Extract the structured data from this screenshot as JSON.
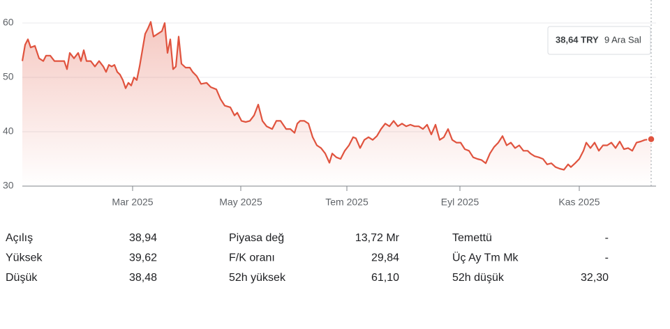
{
  "chart_data": {
    "type": "line",
    "x": [
      0,
      4,
      8,
      12,
      18,
      24,
      30,
      34,
      40,
      46,
      52,
      60,
      64,
      68,
      74,
      80,
      84,
      88,
      92,
      98,
      104,
      110,
      116,
      120,
      124,
      128,
      132,
      136,
      140,
      144,
      148,
      152,
      156,
      160,
      164,
      168,
      172,
      176,
      180,
      184,
      188,
      194,
      200,
      204,
      208,
      212,
      216,
      220,
      224,
      228,
      234,
      240,
      244,
      250,
      256,
      264,
      270,
      278,
      284,
      290,
      298,
      304,
      308,
      314,
      320,
      326,
      332,
      338,
      344,
      350,
      358,
      364,
      370,
      378,
      384,
      390,
      394,
      398,
      404,
      410,
      416,
      422,
      428,
      434,
      440,
      444,
      450,
      456,
      462,
      468,
      474,
      478,
      484,
      490,
      496,
      502,
      508,
      514,
      520,
      526,
      532,
      538,
      544,
      550,
      556,
      562,
      568,
      574,
      580,
      586,
      592,
      598,
      604,
      610,
      616,
      622,
      628,
      634,
      640,
      646,
      652,
      658,
      664,
      670,
      676,
      682,
      688,
      694,
      700,
      706,
      712,
      718,
      724,
      728,
      734,
      740,
      746,
      752,
      758,
      764,
      770,
      776,
      782,
      786,
      792,
      798,
      804,
      808,
      814,
      820,
      826,
      832,
      838,
      844,
      850,
      856,
      862,
      868,
      874,
      880,
      886,
      892,
      901
    ],
    "series": [
      {
        "color": "#e0533e",
        "values": [
          53,
          56,
          57,
          55.5,
          55.8,
          53.5,
          53,
          54,
          54,
          53,
          53,
          53,
          51.5,
          54.5,
          53.5,
          54.5,
          53,
          55,
          53,
          53,
          52,
          53,
          52,
          51,
          52.3,
          52,
          52.3,
          51,
          50.5,
          49.5,
          48,
          49,
          48.5,
          50,
          49.5,
          52,
          55,
          58,
          59,
          60.2,
          57.5,
          58,
          58.5,
          60,
          54.5,
          57,
          51.5,
          52,
          57.5,
          52.5,
          51.8,
          51.8,
          51,
          50.2,
          48.8,
          49,
          48.2,
          47.8,
          46,
          44.8,
          44.5,
          43,
          43.5,
          42,
          41.8,
          42,
          43,
          45,
          42,
          41,
          40.5,
          42,
          42,
          40.5,
          40.5,
          39.8,
          41.5,
          42,
          42,
          41.5,
          39,
          37.5,
          37,
          36,
          34.3,
          36,
          35.3,
          35,
          36.5,
          37.5,
          39,
          38.8,
          37,
          38.5,
          39,
          38.5,
          39.2,
          40.5,
          41.5,
          41,
          42,
          41,
          41.5,
          41,
          41.3,
          41,
          41,
          40.5,
          41.3,
          39.5,
          41.3,
          38.5,
          39,
          40.5,
          38.5,
          38,
          38,
          36.8,
          36.5,
          35.3,
          35,
          34.8,
          34.2,
          36,
          37.2,
          38,
          39.2,
          37.5,
          38,
          37,
          37.5,
          36.5,
          36.5,
          36,
          35.5,
          35.3,
          35,
          34,
          34.2,
          33.5,
          33.2,
          33,
          34,
          33.5,
          34.2,
          35,
          36.5,
          38,
          37,
          38,
          36.5,
          37.5,
          37.5,
          38,
          37,
          38.2,
          36.8,
          37,
          36.5,
          38,
          38.2,
          38.5,
          38.64
        ]
      }
    ],
    "xlim": [
      0,
      908
    ],
    "xticks": [
      {
        "value": 158,
        "label": "Mar 2025"
      },
      {
        "value": 313,
        "label": "May 2025"
      },
      {
        "value": 465,
        "label": "Tem 2025"
      },
      {
        "value": 627,
        "label": "Eyl 2025"
      },
      {
        "value": 798,
        "label": "Kas 2025"
      }
    ],
    "ylim": [
      30,
      61
    ],
    "yticks": [
      30,
      40,
      50,
      60
    ],
    "grid": true,
    "tooltip": {
      "price": "38,64 TRY",
      "date": "9 Ara Sal"
    }
  },
  "stats": [
    [
      {
        "label": "Açılış",
        "value": "38,94"
      },
      {
        "label": "Piyasa değ",
        "value": "13,72 Mr"
      },
      {
        "label": "Temettü",
        "value": "-"
      }
    ],
    [
      {
        "label": "Yüksek",
        "value": "39,62"
      },
      {
        "label": "F/K oranı",
        "value": "29,84"
      },
      {
        "label": "Üç Ay Tm Mk",
        "value": "-"
      }
    ],
    [
      {
        "label": "Düşük",
        "value": "38,48"
      },
      {
        "label": "52h yüksek",
        "value": "61,10"
      },
      {
        "label": "52h düşük",
        "value": "32,30"
      }
    ]
  ]
}
